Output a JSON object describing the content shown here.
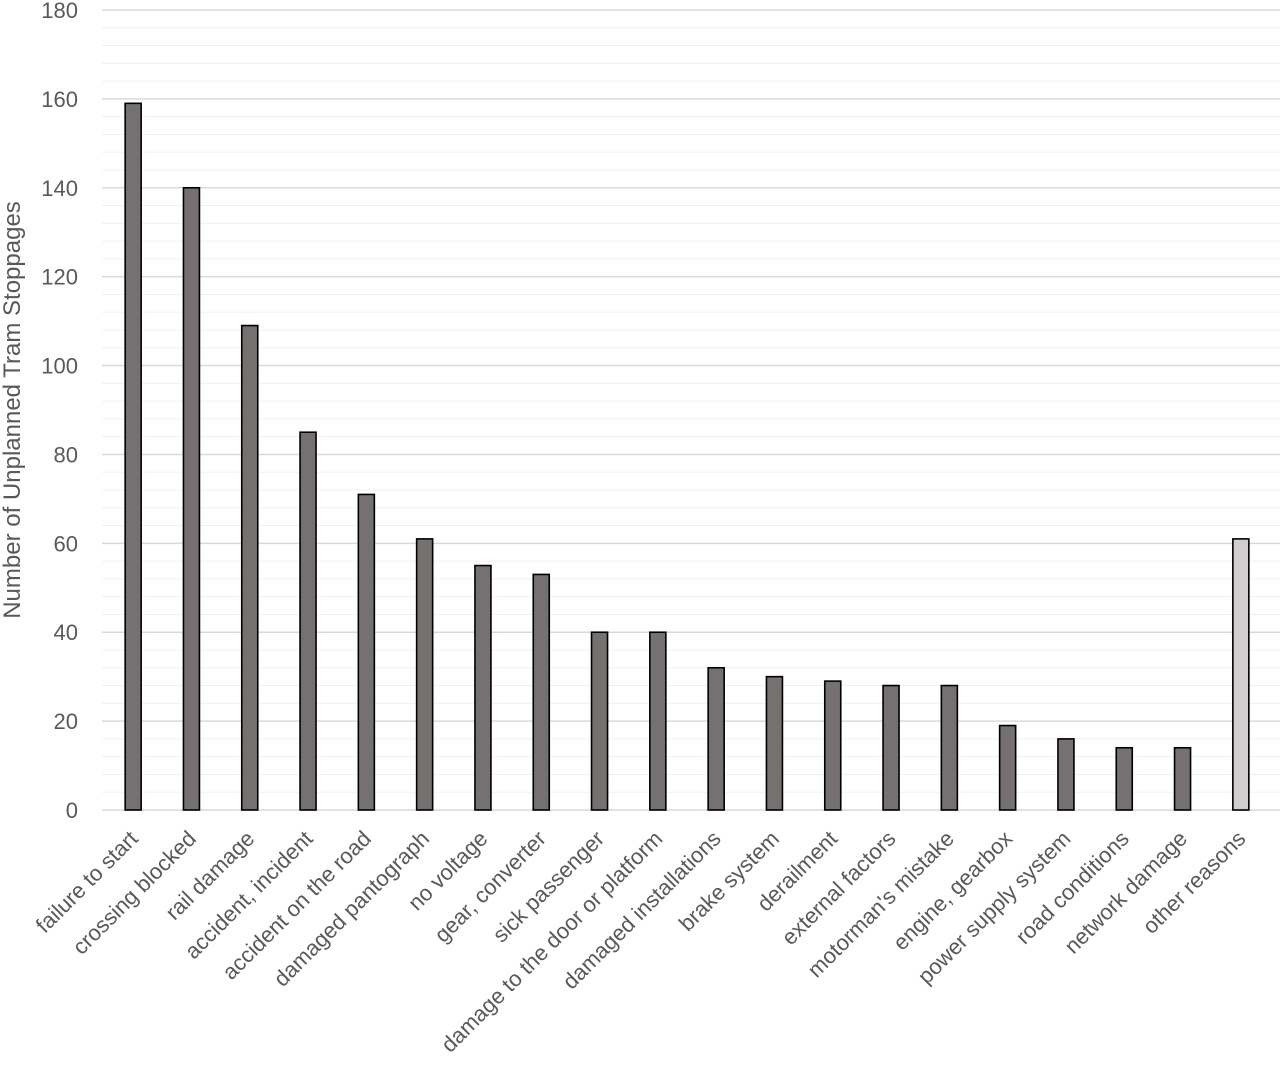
{
  "chart_data": {
    "type": "bar",
    "title": "",
    "xlabel": "",
    "ylabel": "Number of Unplanned Tram Stoppages",
    "ylim": [
      0,
      180
    ],
    "yticks": [
      0,
      20,
      40,
      60,
      80,
      100,
      120,
      140,
      160,
      180
    ],
    "grid": true,
    "categories": [
      "failure to start",
      "crossing blocked",
      "rail damage",
      "accident, incident",
      "accident on the road",
      "damaged pantograph",
      "no voltage",
      "gear, converter",
      "sick passenger",
      "damage to the door or platform",
      "damaged installations",
      "brake system",
      "derailment",
      "external factors",
      "motorman's mistake",
      "engine, gearbox",
      "power supply system",
      "road conditions",
      "network damage",
      "other reasons"
    ],
    "values": [
      159,
      140,
      109,
      85,
      71,
      61,
      55,
      53,
      40,
      40,
      32,
      30,
      29,
      28,
      28,
      19,
      16,
      14,
      14,
      61
    ],
    "colors": {
      "bar": "#767171",
      "bar_highlight": "#d0cece",
      "bar_outline": "#000000"
    },
    "highlight_categories": [
      "other reasons"
    ]
  }
}
